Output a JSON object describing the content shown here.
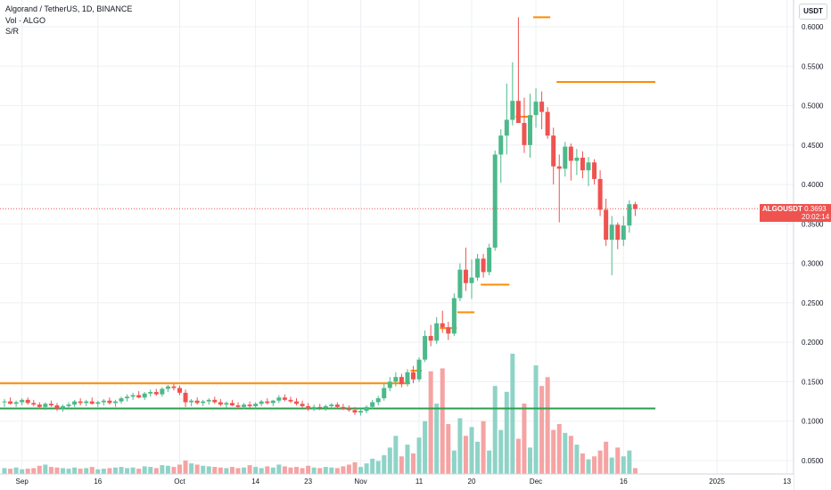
{
  "header": {
    "title": "Algorand / TetherUS, 1D, BINANCE",
    "volume_label": "Vol · ALGO",
    "indicator_label": "S/R"
  },
  "axis": {
    "unit_label": "USDT"
  },
  "price_tag": {
    "symbol": "ALGOUSDT",
    "price": "0.3693",
    "countdown": "20:02:14",
    "color": "#ef5350"
  },
  "colors": {
    "up": "#4cb98a",
    "down": "#ef5350",
    "vol_up": "#8fd3c7",
    "vol_down": "#f5a3a3",
    "resistance": "#ff8c00",
    "support": "#2e9e4e",
    "grid": "#eef0f3"
  },
  "chart_data": {
    "type": "candlestick",
    "title": "Algorand / TetherUS, 1D, BINANCE",
    "y_ticks": [
      "0.6000",
      "0.5500",
      "0.5000",
      "0.4500",
      "0.4000",
      "0.3500",
      "0.3000",
      "0.2500",
      "0.2000",
      "0.1500",
      "0.1000",
      "0.0500"
    ],
    "y_tick_values": [
      0.6,
      0.55,
      0.5,
      0.45,
      0.4,
      0.35,
      0.3,
      0.25,
      0.2,
      0.15,
      0.1,
      0.05
    ],
    "ylim": [
      0.035,
      0.625
    ],
    "x_ticks": [
      {
        "label": "Sep",
        "index": 3
      },
      {
        "label": "16",
        "index": 16
      },
      {
        "label": "Oct",
        "index": 30
      },
      {
        "label": "14",
        "index": 43
      },
      {
        "label": "23",
        "index": 52
      },
      {
        "label": "Nov",
        "index": 61
      },
      {
        "label": "11",
        "index": 71
      },
      {
        "label": "20",
        "index": 80
      },
      {
        "label": "Dec",
        "index": 91
      },
      {
        "label": "16",
        "index": 106
      },
      {
        "label": "2025",
        "index": 122
      },
      {
        "label": "13",
        "index": 134
      }
    ],
    "candles": [
      [
        0.124,
        0.128,
        0.118,
        0.125
      ],
      [
        0.125,
        0.13,
        0.121,
        0.122
      ],
      [
        0.122,
        0.126,
        0.118,
        0.124
      ],
      [
        0.124,
        0.129,
        0.12,
        0.127
      ],
      [
        0.127,
        0.13,
        0.121,
        0.123
      ],
      [
        0.123,
        0.127,
        0.119,
        0.121
      ],
      [
        0.121,
        0.124,
        0.115,
        0.118
      ],
      [
        0.118,
        0.124,
        0.114,
        0.122
      ],
      [
        0.122,
        0.126,
        0.118,
        0.12
      ],
      [
        0.12,
        0.123,
        0.113,
        0.116
      ],
      [
        0.116,
        0.121,
        0.112,
        0.119
      ],
      [
        0.119,
        0.124,
        0.116,
        0.121
      ],
      [
        0.121,
        0.127,
        0.118,
        0.125
      ],
      [
        0.125,
        0.129,
        0.12,
        0.123
      ],
      [
        0.123,
        0.127,
        0.119,
        0.125
      ],
      [
        0.125,
        0.13,
        0.121,
        0.122
      ],
      [
        0.122,
        0.126,
        0.118,
        0.124
      ],
      [
        0.124,
        0.128,
        0.12,
        0.126
      ],
      [
        0.126,
        0.13,
        0.121,
        0.123
      ],
      [
        0.123,
        0.127,
        0.118,
        0.125
      ],
      [
        0.125,
        0.131,
        0.122,
        0.129
      ],
      [
        0.129,
        0.134,
        0.125,
        0.131
      ],
      [
        0.131,
        0.136,
        0.127,
        0.133
      ],
      [
        0.133,
        0.138,
        0.129,
        0.13
      ],
      [
        0.13,
        0.137,
        0.127,
        0.135
      ],
      [
        0.135,
        0.14,
        0.131,
        0.137
      ],
      [
        0.137,
        0.141,
        0.132,
        0.134
      ],
      [
        0.134,
        0.143,
        0.131,
        0.141
      ],
      [
        0.141,
        0.146,
        0.137,
        0.144
      ],
      [
        0.144,
        0.147,
        0.139,
        0.142
      ],
      [
        0.142,
        0.145,
        0.133,
        0.136
      ],
      [
        0.136,
        0.14,
        0.118,
        0.124
      ],
      [
        0.124,
        0.128,
        0.119,
        0.126
      ],
      [
        0.126,
        0.13,
        0.121,
        0.123
      ],
      [
        0.123,
        0.127,
        0.119,
        0.125
      ],
      [
        0.125,
        0.129,
        0.121,
        0.127
      ],
      [
        0.127,
        0.131,
        0.122,
        0.124
      ],
      [
        0.124,
        0.128,
        0.119,
        0.121
      ],
      [
        0.121,
        0.125,
        0.117,
        0.123
      ],
      [
        0.123,
        0.127,
        0.119,
        0.12
      ],
      [
        0.12,
        0.124,
        0.116,
        0.118
      ],
      [
        0.118,
        0.123,
        0.115,
        0.121
      ],
      [
        0.121,
        0.125,
        0.117,
        0.119
      ],
      [
        0.119,
        0.124,
        0.116,
        0.122
      ],
      [
        0.122,
        0.127,
        0.119,
        0.125
      ],
      [
        0.125,
        0.129,
        0.121,
        0.123
      ],
      [
        0.123,
        0.127,
        0.119,
        0.126
      ],
      [
        0.126,
        0.133,
        0.123,
        0.13
      ],
      [
        0.13,
        0.134,
        0.125,
        0.127
      ],
      [
        0.127,
        0.131,
        0.123,
        0.125
      ],
      [
        0.125,
        0.129,
        0.12,
        0.122
      ],
      [
        0.122,
        0.126,
        0.117,
        0.119
      ],
      [
        0.119,
        0.123,
        0.113,
        0.116
      ],
      [
        0.116,
        0.121,
        0.113,
        0.118
      ],
      [
        0.118,
        0.122,
        0.114,
        0.117
      ],
      [
        0.117,
        0.121,
        0.113,
        0.119
      ],
      [
        0.119,
        0.123,
        0.116,
        0.121
      ],
      [
        0.121,
        0.124,
        0.116,
        0.118
      ],
      [
        0.118,
        0.122,
        0.114,
        0.116
      ],
      [
        0.116,
        0.12,
        0.112,
        0.114
      ],
      [
        0.114,
        0.118,
        0.108,
        0.111
      ],
      [
        0.111,
        0.116,
        0.107,
        0.113
      ],
      [
        0.113,
        0.12,
        0.11,
        0.118
      ],
      [
        0.118,
        0.127,
        0.115,
        0.124
      ],
      [
        0.124,
        0.132,
        0.12,
        0.129
      ],
      [
        0.129,
        0.148,
        0.126,
        0.142
      ],
      [
        0.142,
        0.156,
        0.138,
        0.15
      ],
      [
        0.15,
        0.162,
        0.144,
        0.156
      ],
      [
        0.156,
        0.16,
        0.143,
        0.147
      ],
      [
        0.147,
        0.166,
        0.144,
        0.162
      ],
      [
        0.162,
        0.17,
        0.148,
        0.153
      ],
      [
        0.153,
        0.181,
        0.15,
        0.178
      ],
      [
        0.178,
        0.215,
        0.175,
        0.208
      ],
      [
        0.208,
        0.222,
        0.195,
        0.202
      ],
      [
        0.202,
        0.232,
        0.198,
        0.224
      ],
      [
        0.224,
        0.24,
        0.212,
        0.219
      ],
      [
        0.219,
        0.226,
        0.203,
        0.211
      ],
      [
        0.211,
        0.262,
        0.208,
        0.256
      ],
      [
        0.256,
        0.3,
        0.252,
        0.292
      ],
      [
        0.292,
        0.32,
        0.265,
        0.275
      ],
      [
        0.275,
        0.305,
        0.255,
        0.282
      ],
      [
        0.282,
        0.312,
        0.278,
        0.306
      ],
      [
        0.306,
        0.312,
        0.282,
        0.289
      ],
      [
        0.289,
        0.325,
        0.285,
        0.32
      ],
      [
        0.32,
        0.443,
        0.316,
        0.438
      ],
      [
        0.438,
        0.47,
        0.402,
        0.462
      ],
      [
        0.462,
        0.528,
        0.438,
        0.482
      ],
      [
        0.482,
        0.555,
        0.475,
        0.506
      ],
      [
        0.506,
        0.612,
        0.482,
        0.478
      ],
      [
        0.478,
        0.51,
        0.44,
        0.45
      ],
      [
        0.45,
        0.515,
        0.434,
        0.488
      ],
      [
        0.488,
        0.522,
        0.472,
        0.505
      ],
      [
        0.505,
        0.518,
        0.47,
        0.492
      ],
      [
        0.492,
        0.498,
        0.458,
        0.462
      ],
      [
        0.462,
        0.472,
        0.4,
        0.423
      ],
      [
        0.423,
        0.438,
        0.352,
        0.42
      ],
      [
        0.42,
        0.454,
        0.41,
        0.448
      ],
      [
        0.448,
        0.452,
        0.405,
        0.43
      ],
      [
        0.43,
        0.445,
        0.412,
        0.434
      ],
      [
        0.434,
        0.442,
        0.408,
        0.418
      ],
      [
        0.418,
        0.435,
        0.398,
        0.428
      ],
      [
        0.428,
        0.432,
        0.4,
        0.407
      ],
      [
        0.407,
        0.418,
        0.36,
        0.368
      ],
      [
        0.368,
        0.382,
        0.322,
        0.33
      ],
      [
        0.33,
        0.36,
        0.285,
        0.349
      ],
      [
        0.349,
        0.352,
        0.318,
        0.33
      ],
      [
        0.33,
        0.36,
        0.322,
        0.348
      ],
      [
        0.348,
        0.38,
        0.339,
        0.375
      ],
      [
        0.375,
        0.378,
        0.36,
        0.369
      ]
    ],
    "volume": [
      1.0,
      0.9,
      1.1,
      0.8,
      0.9,
      1.0,
      1.4,
      1.6,
      1.2,
      1.1,
      1.0,
      0.9,
      1.1,
      0.9,
      1.0,
      1.2,
      0.8,
      0.9,
      1.0,
      1.1,
      1.2,
      1.0,
      1.1,
      0.9,
      1.3,
      1.2,
      1.0,
      1.5,
      1.4,
      1.2,
      1.6,
      2.3,
      1.8,
      1.6,
      1.4,
      1.3,
      1.2,
      1.1,
      1.0,
      1.2,
      1.0,
      1.1,
      1.5,
      1.2,
      1.0,
      1.3,
      1.1,
      1.6,
      1.3,
      1.1,
      1.2,
      1.0,
      1.4,
      1.1,
      1.0,
      1.2,
      1.1,
      1.0,
      1.3,
      1.6,
      2.0,
      1.2,
      1.8,
      2.6,
      2.2,
      3.2,
      4.5,
      6.5,
      3.0,
      5.0,
      3.5,
      6.2,
      9.0,
      17.5,
      12.0,
      18.0,
      8.5,
      4.0,
      9.5,
      6.5,
      8.0,
      5.5,
      9.0,
      4.0,
      15.0,
      7.5,
      14.0,
      20.5,
      6.0,
      12.0,
      4.5,
      18.5,
      15.0,
      16.5,
      7.5,
      8.5,
      7.0,
      6.5,
      5.0,
      3.5,
      2.5,
      3.0,
      4.0,
      5.5,
      2.8,
      4.5,
      3.0,
      4.0,
      1.0
    ],
    "resistance_lines": [
      {
        "from": 0,
        "to": 69,
        "y": 0.148
      },
      {
        "from": 70,
        "to": 71,
        "y": 0.164
      },
      {
        "from": 75,
        "to": 77,
        "y": 0.218
      },
      {
        "from": 78,
        "to": 80,
        "y": 0.238
      },
      {
        "from": 82,
        "to": 86,
        "y": 0.273
      },
      {
        "from": 88,
        "to": 90,
        "y": 0.486
      },
      {
        "from": 91,
        "to": 93,
        "y": 0.612
      },
      {
        "from": 95,
        "to": 111,
        "y": 0.53
      }
    ],
    "support_lines": [
      {
        "from": 0,
        "to": 111,
        "y": 0.116
      }
    ],
    "last_price": 0.3693
  }
}
